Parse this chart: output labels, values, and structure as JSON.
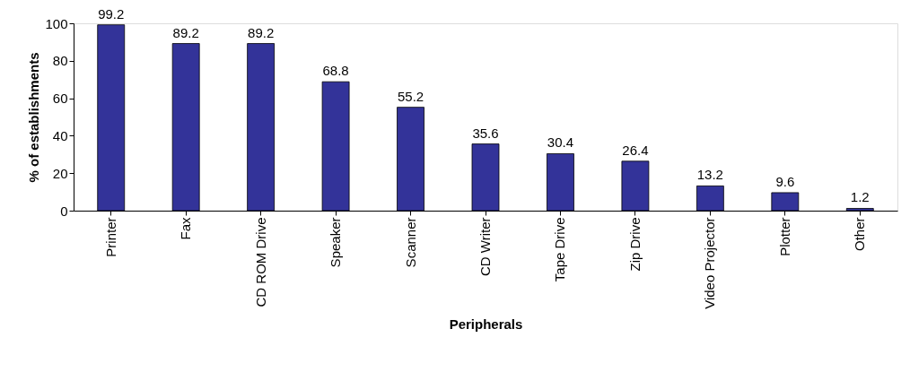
{
  "chart_data": {
    "type": "bar",
    "xlabel": "Peripherals",
    "ylabel": "% of establishments",
    "categories": [
      "Printer",
      "Fax",
      "CD ROM Drive",
      "Speaker",
      "Scanner",
      "CD Writer",
      "Tape Drive",
      "Zip Drive",
      "Video Projector",
      "Plotter",
      "Other"
    ],
    "values": [
      99.2,
      89.2,
      89.2,
      68.8,
      55.2,
      35.6,
      30.4,
      26.4,
      13.2,
      9.6,
      1.2
    ],
    "color": "#333399",
    "ylim": [
      0,
      100
    ],
    "yticks": [
      0,
      20,
      40,
      60,
      80,
      100
    ],
    "grid": false,
    "data_labels": true
  }
}
